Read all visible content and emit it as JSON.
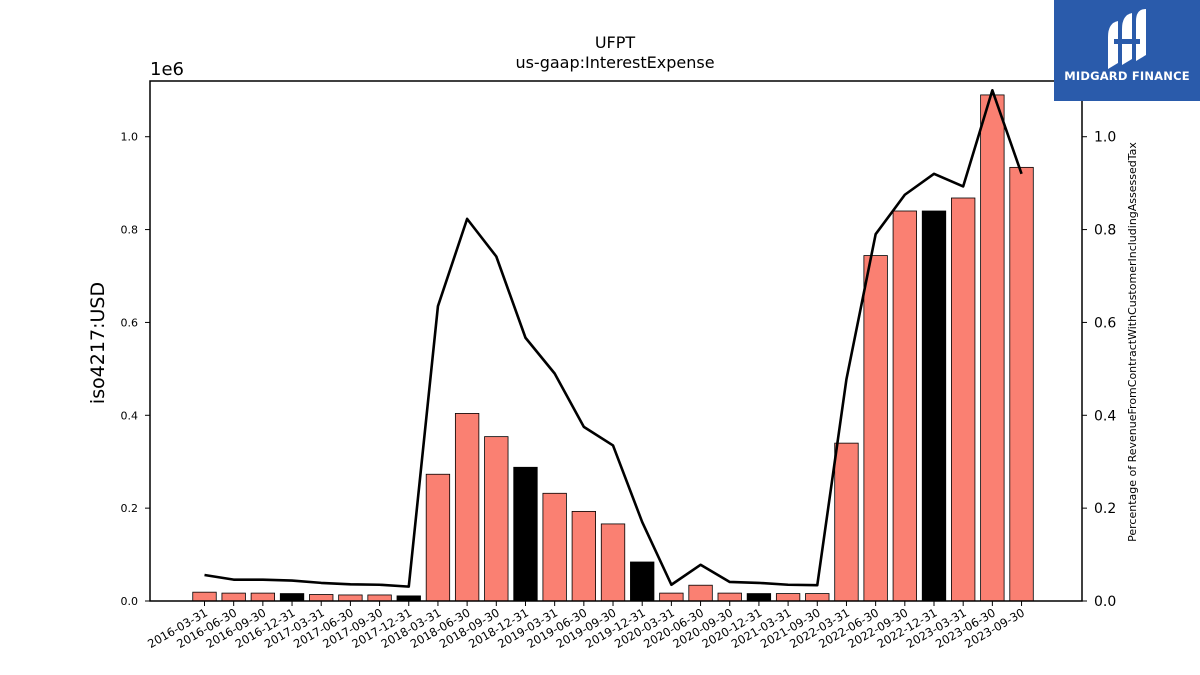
{
  "brand": {
    "name": "MIDGARD FINANCE",
    "bg_color": "#2a5bab"
  },
  "chart_data": {
    "type": "bar",
    "title": "UFPT",
    "subtitle": "us-gaap:InterestExpense",
    "ylabel": "iso4217:USD",
    "ylabel_right": "Percentage of RevenueFromContractWithCustomerIncludingAssessedTax",
    "y_scale_label": "1e6",
    "ylim": [
      0,
      1.12
    ],
    "ylim_right": [
      0,
      1.12
    ],
    "y_ticks": [
      "0.0",
      "0.2",
      "0.4",
      "0.6",
      "0.8",
      "1.0"
    ],
    "y_ticks_right": [
      "0.0",
      "0.2",
      "0.4",
      "0.6",
      "0.8",
      "1.0"
    ],
    "bar_color": "#fa8072",
    "highlight_color": "#000000",
    "line_color": "#000000",
    "categories": [
      "2016-03-31",
      "2016-06-30",
      "2016-09-30",
      "2016-12-31",
      "2017-03-31",
      "2017-06-30",
      "2017-09-30",
      "2017-12-31",
      "2018-03-31",
      "2018-06-30",
      "2018-09-30",
      "2018-12-31",
      "2019-03-31",
      "2019-06-30",
      "2019-09-30",
      "2019-12-31",
      "2020-03-31",
      "2020-06-30",
      "2020-09-30",
      "2020-12-31",
      "2021-03-31",
      "2021-09-30",
      "2022-03-31",
      "2022-06-30",
      "2022-09-30",
      "2022-12-31",
      "2023-03-31",
      "2023-06-30",
      "2023-09-30"
    ],
    "values": [
      0.019,
      0.017,
      0.017,
      0.016,
      0.014,
      0.013,
      0.013,
      0.011,
      0.273,
      0.404,
      0.354,
      0.288,
      0.232,
      0.193,
      0.166,
      0.084,
      0.017,
      0.034,
      0.017,
      0.016,
      0.016,
      0.016,
      0.34,
      0.744,
      0.84,
      0.84,
      0.868,
      1.09,
      0.934
    ],
    "highlight": [
      false,
      false,
      false,
      true,
      false,
      false,
      false,
      true,
      false,
      false,
      false,
      true,
      false,
      false,
      false,
      true,
      false,
      false,
      false,
      true,
      false,
      false,
      false,
      false,
      false,
      true,
      false,
      false,
      false
    ],
    "line_values": [
      0.056,
      0.046,
      0.046,
      0.044,
      0.039,
      0.036,
      0.035,
      0.031,
      0.635,
      0.823,
      0.742,
      0.567,
      0.49,
      0.375,
      0.335,
      0.17,
      0.035,
      0.078,
      0.041,
      0.039,
      0.035,
      0.034,
      0.478,
      0.79,
      0.875,
      0.92,
      0.893,
      1.1,
      0.92
    ],
    "grid": false,
    "legend": "none"
  }
}
